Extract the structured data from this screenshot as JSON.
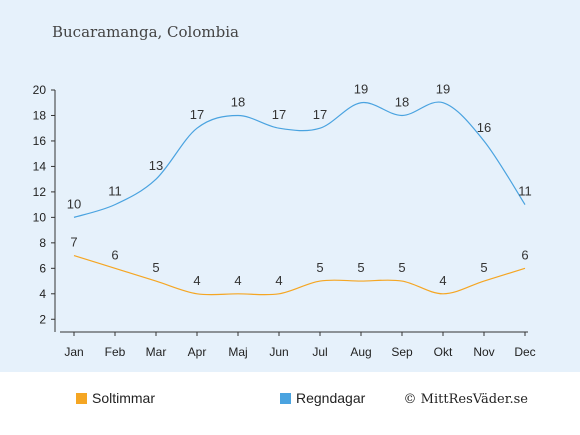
{
  "chart_data": {
    "type": "line",
    "title": "Bucaramanga, Colombia",
    "categories": [
      "Jan",
      "Feb",
      "Mar",
      "Apr",
      "Maj",
      "Jun",
      "Jul",
      "Aug",
      "Sep",
      "Okt",
      "Nov",
      "Dec"
    ],
    "series": [
      {
        "name": "Soltimmar",
        "color": "#f5a623",
        "values": [
          7,
          6,
          5,
          4,
          4,
          4,
          5,
          5,
          5,
          4,
          5,
          6
        ]
      },
      {
        "name": "Regndagar",
        "color": "#4aa3e0",
        "values": [
          10,
          11,
          13,
          17,
          18,
          17,
          17,
          19,
          18,
          19,
          16,
          11
        ]
      }
    ],
    "y_ticks": [
      2,
      4,
      6,
      8,
      10,
      12,
      14,
      16,
      18,
      20
    ],
    "ylim": [
      1,
      20
    ],
    "grid": false,
    "legend_position": "bottom-left",
    "credit": "© MittResVäder.se"
  }
}
